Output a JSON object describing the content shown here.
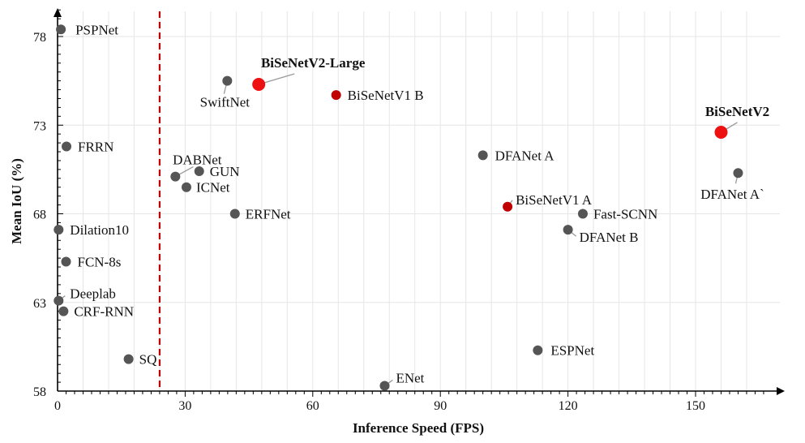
{
  "chart_data": {
    "type": "scatter",
    "title": "",
    "xlabel": "Inference Speed (FPS)",
    "ylabel": "Mean IoU (%)",
    "xlim": [
      0,
      168
    ],
    "ylim": [
      58,
      80
    ],
    "xticks": [
      0,
      30,
      60,
      90,
      120,
      150
    ],
    "yticks": [
      58,
      63,
      68,
      73,
      78
    ],
    "threshold_fps": 24,
    "points": [
      {
        "name": "PSPNet",
        "x": 0.78,
        "y": 78.4,
        "group": "other"
      },
      {
        "name": "FRRN",
        "x": 2.1,
        "y": 71.8,
        "group": "other"
      },
      {
        "name": "Dilation10",
        "x": 0.25,
        "y": 67.1,
        "group": "other"
      },
      {
        "name": "FCN-8s",
        "x": 2.0,
        "y": 65.3,
        "group": "other"
      },
      {
        "name": "Deeplab",
        "x": 0.25,
        "y": 63.1,
        "group": "other"
      },
      {
        "name": "CRF-RNN",
        "x": 1.4,
        "y": 62.5,
        "group": "other"
      },
      {
        "name": "SQ",
        "x": 16.7,
        "y": 59.8,
        "group": "other"
      },
      {
        "name": "SwiftNet",
        "x": 39.9,
        "y": 75.5,
        "group": "other"
      },
      {
        "name": "BiSeNetV2-Large",
        "x": 47.3,
        "y": 75.3,
        "group": "ours"
      },
      {
        "name": "BiSeNetV1 B",
        "x": 65.5,
        "y": 74.7,
        "group": "bisenetv1"
      },
      {
        "name": "DABNet",
        "x": 27.7,
        "y": 70.1,
        "group": "other"
      },
      {
        "name": "GUN",
        "x": 33.3,
        "y": 70.4,
        "group": "other"
      },
      {
        "name": "ICNet",
        "x": 30.3,
        "y": 69.5,
        "group": "other"
      },
      {
        "name": "ERFNet",
        "x": 41.7,
        "y": 68.0,
        "group": "other"
      },
      {
        "name": "ENet",
        "x": 76.9,
        "y": 58.3,
        "group": "other"
      },
      {
        "name": "ESPNet",
        "x": 112.9,
        "y": 60.3,
        "group": "other"
      },
      {
        "name": "DFANet A",
        "x": 100.0,
        "y": 71.3,
        "group": "other"
      },
      {
        "name": "BiSeNetV1 A",
        "x": 105.8,
        "y": 68.4,
        "group": "bisenetv1"
      },
      {
        "name": "Fast-SCNN",
        "x": 123.5,
        "y": 68.0,
        "group": "other"
      },
      {
        "name": "DFANet B",
        "x": 120.0,
        "y": 67.1,
        "group": "other"
      },
      {
        "name": "BiSeNetV2",
        "x": 156.0,
        "y": 72.6,
        "group": "ours"
      },
      {
        "name": "DFANet A`",
        "x": 160.0,
        "y": 70.3,
        "group": "other"
      }
    ]
  },
  "colors": {
    "other": "#555555",
    "bisenetv1": "#c00000",
    "ours": "#ee1111",
    "threshold": "#c00000",
    "grid": "#e6e6e6",
    "axis": "#000000",
    "leader": "#999999"
  }
}
